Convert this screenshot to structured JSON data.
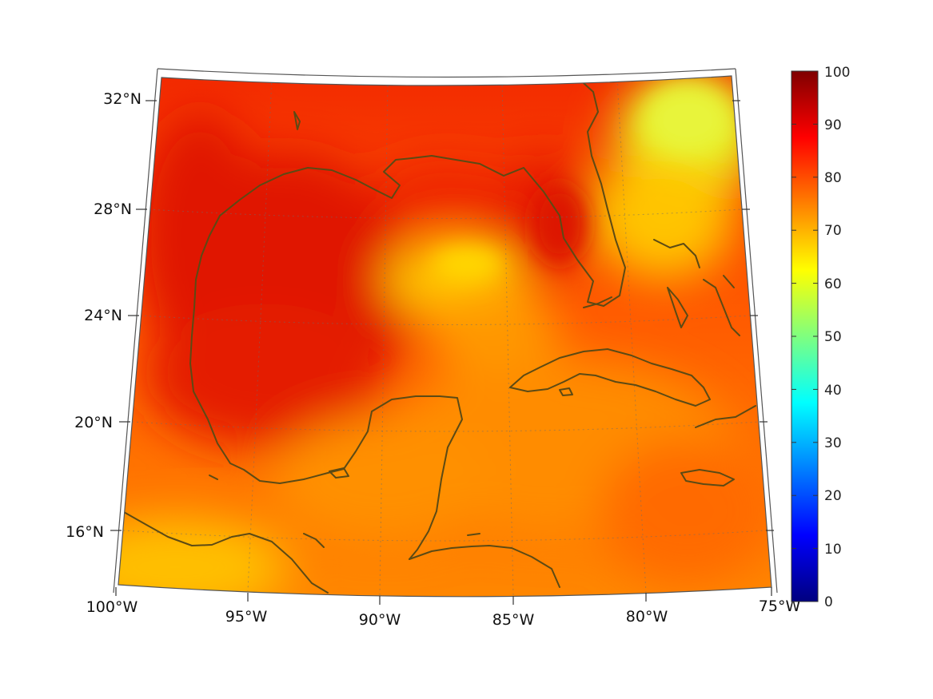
{
  "map": {
    "longitude_labels": [
      "100°W",
      "95°W",
      "90°W",
      "85°W",
      "80°W",
      "75°W"
    ],
    "latitude_labels": [
      "16°N",
      "20°N",
      "24°N",
      "28°N",
      "32°N"
    ],
    "extent": {
      "lon_min": -100,
      "lon_max": -75,
      "lat_min": 14,
      "lat_max": 33
    },
    "projection": "conic",
    "basemap": "coastlines"
  },
  "colorbar": {
    "ticks": [
      "0",
      "10",
      "20",
      "30",
      "40",
      "50",
      "60",
      "70",
      "80",
      "90",
      "100"
    ],
    "min": 0,
    "max": 100,
    "colormap": "jet",
    "colors": [
      "#00007f",
      "#0000ff",
      "#007fff",
      "#00ffff",
      "#7fff7f",
      "#ffff00",
      "#ff7f00",
      "#ff0000",
      "#7f0000"
    ]
  },
  "field": {
    "dominant_range": [
      60,
      95
    ],
    "high_color": "#e81a00",
    "mid_color": "#ff7a00",
    "low_color": "#e8f020",
    "coast_color": "#5c4a14"
  }
}
